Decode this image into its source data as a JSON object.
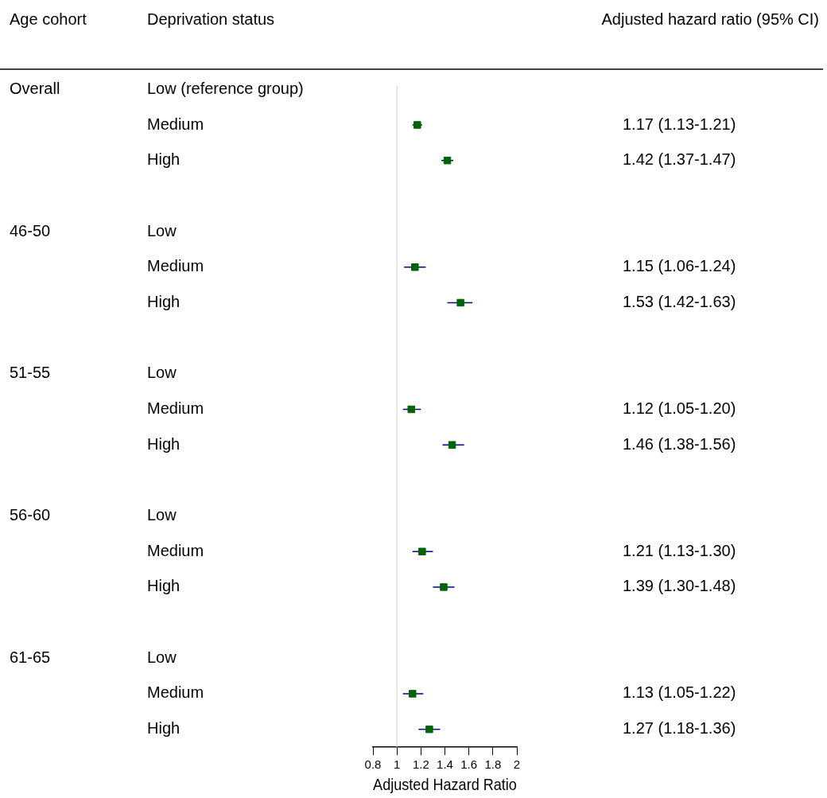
{
  "chart_data": {
    "type": "scatter",
    "orientation": "horizontal",
    "annotations": [
      "Age cohort",
      "Deprivation status",
      "Adjusted hazard ratio (95% CI)"
    ],
    "xlabel": "Adjusted Hazard Ratio",
    "categories": [
      "Low (reference group)",
      "Medium",
      "High",
      null,
      "Low",
      "Medium",
      "High",
      null,
      "Low",
      "Medium",
      "High",
      null,
      "Low",
      "Medium",
      "High",
      null,
      "Low",
      "Medium",
      "High"
    ],
    "y2_categories": [
      "Overall",
      null,
      null,
      null,
      "46-50",
      null,
      null,
      null,
      "51-55",
      null,
      null,
      null,
      "56-60",
      null,
      null,
      null,
      "61-65",
      null,
      null
    ],
    "series": [
      {
        "color": "#006400",
        "values": [
          null,
          1.17,
          1.42,
          null,
          null,
          1.15,
          1.53,
          null,
          null,
          1.12,
          1.46,
          null,
          null,
          1.21,
          1.39,
          null,
          null,
          1.13,
          1.27
        ],
        "errors": [
          null,
          [
            1.13,
            1.21
          ],
          [
            1.37,
            1.47
          ],
          null,
          null,
          [
            1.06,
            1.24
          ],
          [
            1.42,
            1.63
          ],
          null,
          null,
          [
            1.05,
            1.2
          ],
          [
            1.38,
            1.56
          ],
          null,
          null,
          [
            1.13,
            1.3
          ],
          [
            1.3,
            1.48
          ],
          null,
          null,
          [
            1.05,
            1.22
          ],
          [
            1.18,
            1.36
          ]
        ],
        "value_labels": [
          null,
          "1.17 (1.13-1.21)",
          "1.42 (1.37-1.47)",
          null,
          null,
          "1.15 (1.06-1.24)",
          "1.53 (1.42-1.63)",
          null,
          null,
          "1.12 (1.05-1.20)",
          "1.46 (1.38-1.56)",
          null,
          null,
          "1.21 (1.13-1.30)",
          "1.39 (1.30-1.48)",
          null,
          null,
          "1.13 (1.05-1.22)",
          "1.27 (1.18-1.36)"
        ]
      }
    ],
    "xlim": [
      0.8,
      2
    ],
    "xticks": [
      0.8,
      1,
      1.2,
      1.4,
      1.6,
      1.8,
      2
    ],
    "ref_lines": [
      {
        "axis": "x",
        "value": 1,
        "color": "#d3d3d3"
      }
    ],
    "marker": "square",
    "grid": false,
    "legend": false
  }
}
